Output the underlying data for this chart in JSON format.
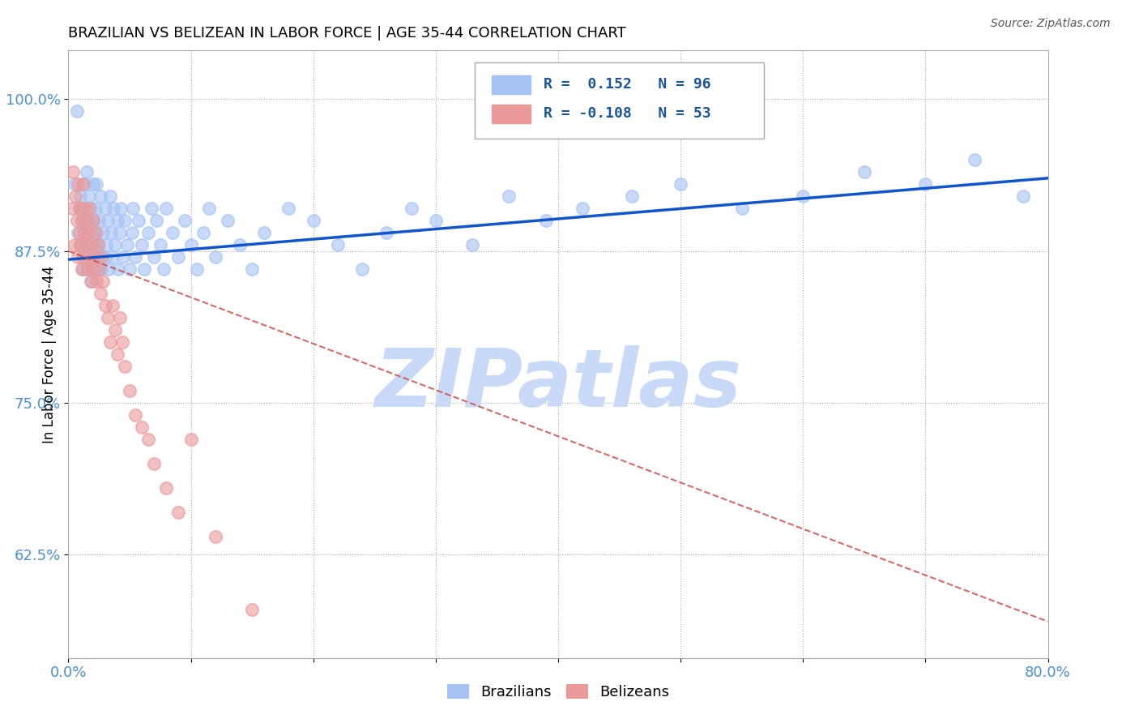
{
  "title": "BRAZILIAN VS BELIZEAN IN LABOR FORCE | AGE 35-44 CORRELATION CHART",
  "source": "Source: ZipAtlas.com",
  "ylabel": "In Labor Force | Age 35-44",
  "xlim": [
    0.0,
    0.8
  ],
  "ylim": [
    0.54,
    1.04
  ],
  "xticks": [
    0.0,
    0.1,
    0.2,
    0.3,
    0.4,
    0.5,
    0.6,
    0.7,
    0.8
  ],
  "xticklabels": [
    "0.0%",
    "",
    "",
    "",
    "",
    "",
    "",
    "",
    "80.0%"
  ],
  "yticks": [
    0.625,
    0.75,
    0.875,
    1.0
  ],
  "yticklabels": [
    "62.5%",
    "75.0%",
    "87.5%",
    "100.0%"
  ],
  "r_brazilian": 0.152,
  "n_brazilian": 96,
  "r_belizean": -0.108,
  "n_belizean": 53,
  "color_brazilian": "#a4c2f4",
  "color_belizean": "#ea9999",
  "trend_color_brazilian": "#1155cc",
  "trend_color_belizean": "#cc4444",
  "watermark": "ZIPatlas",
  "watermark_color": "#c9daf8",
  "braz_trend_x0": 0.0,
  "braz_trend_y0": 0.868,
  "braz_trend_x1": 0.8,
  "braz_trend_y1": 0.935,
  "beli_trend_x0": 0.0,
  "beli_trend_y0": 0.875,
  "beli_trend_x1": 0.8,
  "beli_trend_y1": 0.57,
  "brazilian_x": [
    0.005,
    0.007,
    0.008,
    0.009,
    0.01,
    0.01,
    0.011,
    0.012,
    0.012,
    0.013,
    0.013,
    0.014,
    0.015,
    0.015,
    0.016,
    0.016,
    0.017,
    0.018,
    0.018,
    0.019,
    0.019,
    0.02,
    0.02,
    0.021,
    0.022,
    0.022,
    0.023,
    0.023,
    0.024,
    0.025,
    0.025,
    0.026,
    0.027,
    0.028,
    0.03,
    0.03,
    0.031,
    0.032,
    0.033,
    0.034,
    0.035,
    0.036,
    0.037,
    0.038,
    0.04,
    0.041,
    0.042,
    0.043,
    0.045,
    0.046,
    0.048,
    0.05,
    0.052,
    0.053,
    0.055,
    0.057,
    0.06,
    0.062,
    0.065,
    0.068,
    0.07,
    0.072,
    0.075,
    0.078,
    0.08,
    0.085,
    0.09,
    0.095,
    0.1,
    0.105,
    0.11,
    0.115,
    0.12,
    0.13,
    0.14,
    0.15,
    0.16,
    0.18,
    0.2,
    0.22,
    0.24,
    0.26,
    0.28,
    0.3,
    0.33,
    0.36,
    0.39,
    0.42,
    0.46,
    0.5,
    0.55,
    0.6,
    0.65,
    0.7,
    0.74,
    0.78
  ],
  "brazilian_y": [
    0.93,
    0.99,
    0.89,
    0.91,
    0.88,
    0.92,
    0.9,
    0.86,
    0.91,
    0.89,
    0.93,
    0.87,
    0.9,
    0.94,
    0.88,
    0.86,
    0.92,
    0.89,
    0.91,
    0.87,
    0.85,
    0.9,
    0.93,
    0.88,
    0.86,
    0.91,
    0.89,
    0.93,
    0.87,
    0.9,
    0.88,
    0.92,
    0.86,
    0.89,
    0.91,
    0.87,
    0.88,
    0.9,
    0.86,
    0.92,
    0.89,
    0.87,
    0.91,
    0.88,
    0.9,
    0.86,
    0.89,
    0.91,
    0.87,
    0.9,
    0.88,
    0.86,
    0.89,
    0.91,
    0.87,
    0.9,
    0.88,
    0.86,
    0.89,
    0.91,
    0.87,
    0.9,
    0.88,
    0.86,
    0.91,
    0.89,
    0.87,
    0.9,
    0.88,
    0.86,
    0.89,
    0.91,
    0.87,
    0.9,
    0.88,
    0.86,
    0.89,
    0.91,
    0.9,
    0.88,
    0.86,
    0.89,
    0.91,
    0.9,
    0.88,
    0.92,
    0.9,
    0.91,
    0.92,
    0.93,
    0.91,
    0.92,
    0.94,
    0.93,
    0.95,
    0.92
  ],
  "belizean_x": [
    0.003,
    0.004,
    0.005,
    0.006,
    0.007,
    0.008,
    0.008,
    0.009,
    0.01,
    0.01,
    0.011,
    0.011,
    0.012,
    0.012,
    0.013,
    0.013,
    0.014,
    0.015,
    0.015,
    0.016,
    0.016,
    0.017,
    0.018,
    0.019,
    0.02,
    0.02,
    0.021,
    0.022,
    0.023,
    0.024,
    0.025,
    0.026,
    0.027,
    0.028,
    0.03,
    0.032,
    0.034,
    0.036,
    0.038,
    0.04,
    0.042,
    0.044,
    0.046,
    0.05,
    0.055,
    0.06,
    0.065,
    0.07,
    0.08,
    0.09,
    0.1,
    0.12,
    0.15
  ],
  "belizean_y": [
    0.91,
    0.94,
    0.88,
    0.92,
    0.9,
    0.87,
    0.93,
    0.89,
    0.91,
    0.88,
    0.86,
    0.9,
    0.93,
    0.87,
    0.89,
    0.91,
    0.88,
    0.86,
    0.9,
    0.89,
    0.87,
    0.91,
    0.85,
    0.88,
    0.86,
    0.9,
    0.87,
    0.89,
    0.85,
    0.88,
    0.86,
    0.84,
    0.87,
    0.85,
    0.83,
    0.82,
    0.8,
    0.83,
    0.81,
    0.79,
    0.82,
    0.8,
    0.78,
    0.76,
    0.74,
    0.73,
    0.72,
    0.7,
    0.68,
    0.66,
    0.72,
    0.64,
    0.58
  ]
}
